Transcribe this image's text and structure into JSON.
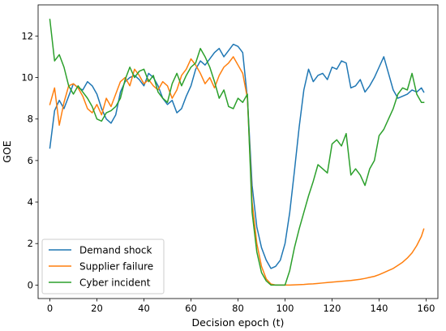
{
  "chart_data": {
    "type": "line",
    "title": "",
    "xlabel": "Decision epoch (t)",
    "ylabel": "GOE",
    "xlim": [
      -5,
      165
    ],
    "ylim": [
      -0.65,
      13.5
    ],
    "xticks": [
      0,
      20,
      40,
      60,
      80,
      100,
      120,
      140,
      160
    ],
    "yticks": [
      0,
      2,
      4,
      6,
      8,
      10,
      12
    ],
    "grid": false,
    "legend_position": "lower-left",
    "series": [
      {
        "name": "Demand shock",
        "color": "#1f77b4",
        "x": [
          0,
          2,
          4,
          6,
          8,
          10,
          12,
          14,
          16,
          18,
          20,
          22,
          24,
          26,
          28,
          30,
          32,
          34,
          36,
          38,
          40,
          42,
          44,
          46,
          48,
          50,
          52,
          54,
          56,
          58,
          60,
          62,
          64,
          66,
          68,
          70,
          72,
          74,
          76,
          78,
          80,
          82,
          84,
          86,
          88,
          90,
          92,
          94,
          96,
          98,
          100,
          102,
          104,
          106,
          108,
          110,
          112,
          114,
          116,
          118,
          120,
          122,
          124,
          126,
          128,
          130,
          132,
          134,
          136,
          138,
          140,
          142,
          144,
          146,
          148,
          150,
          152,
          154,
          156,
          158,
          159
        ],
        "y": [
          6.6,
          8.4,
          8.9,
          8.5,
          9.1,
          9.7,
          9.5,
          9.4,
          9.8,
          9.6,
          9.2,
          8.5,
          8.0,
          7.8,
          8.2,
          9.3,
          9.8,
          10.0,
          10.1,
          9.9,
          9.6,
          10.2,
          10.0,
          9.6,
          9.0,
          8.7,
          8.9,
          8.3,
          8.5,
          9.1,
          9.6,
          10.4,
          10.8,
          10.6,
          10.9,
          11.2,
          11.4,
          11.0,
          11.3,
          11.6,
          11.5,
          11.2,
          9.0,
          4.8,
          2.8,
          1.8,
          1.2,
          0.8,
          0.9,
          1.2,
          2.0,
          3.5,
          5.5,
          7.6,
          9.4,
          10.4,
          9.8,
          10.1,
          10.2,
          9.9,
          10.5,
          10.4,
          10.8,
          10.7,
          9.5,
          9.6,
          9.9,
          9.3,
          9.6,
          10.0,
          10.5,
          11.0,
          10.2,
          9.4,
          9.0,
          9.1,
          9.2,
          9.4,
          9.3,
          9.5,
          9.3
        ]
      },
      {
        "name": "Supplier failure",
        "color": "#ff7f0e",
        "x": [
          0,
          2,
          4,
          6,
          8,
          10,
          12,
          14,
          16,
          18,
          20,
          22,
          24,
          26,
          28,
          30,
          32,
          34,
          36,
          38,
          40,
          42,
          44,
          46,
          48,
          50,
          52,
          54,
          56,
          58,
          60,
          62,
          64,
          66,
          68,
          70,
          72,
          74,
          76,
          78,
          80,
          82,
          84,
          86,
          88,
          90,
          92,
          94,
          96,
          98,
          100,
          102,
          104,
          106,
          108,
          110,
          112,
          114,
          116,
          118,
          120,
          122,
          124,
          126,
          128,
          130,
          132,
          134,
          136,
          138,
          140,
          142,
          144,
          146,
          148,
          150,
          152,
          154,
          156,
          158,
          159
        ],
        "y": [
          8.7,
          9.5,
          7.7,
          8.8,
          9.6,
          9.7,
          9.5,
          9.1,
          8.5,
          8.3,
          8.7,
          8.2,
          9.0,
          8.6,
          9.2,
          9.8,
          10.0,
          9.6,
          10.4,
          10.1,
          9.7,
          9.9,
          9.6,
          9.4,
          9.8,
          9.6,
          9.0,
          9.4,
          10.1,
          10.4,
          10.9,
          10.6,
          10.2,
          9.7,
          10.0,
          9.5,
          10.1,
          10.5,
          10.7,
          11.0,
          10.6,
          10.2,
          9.0,
          4.0,
          2.0,
          0.9,
          0.3,
          0.05,
          0.0,
          0.0,
          0.0,
          0.0,
          0.01,
          0.02,
          0.03,
          0.05,
          0.06,
          0.08,
          0.1,
          0.12,
          0.14,
          0.16,
          0.18,
          0.2,
          0.22,
          0.25,
          0.28,
          0.32,
          0.37,
          0.42,
          0.5,
          0.6,
          0.7,
          0.8,
          0.95,
          1.1,
          1.3,
          1.55,
          1.9,
          2.35,
          2.7
        ]
      },
      {
        "name": "Cyber incident",
        "color": "#2ca02c",
        "x": [
          0,
          2,
          4,
          6,
          8,
          10,
          12,
          14,
          16,
          18,
          20,
          22,
          24,
          26,
          28,
          30,
          32,
          34,
          36,
          38,
          40,
          42,
          44,
          46,
          48,
          50,
          52,
          54,
          56,
          58,
          60,
          62,
          64,
          66,
          68,
          70,
          72,
          74,
          76,
          78,
          80,
          82,
          84,
          86,
          88,
          90,
          92,
          94,
          96,
          98,
          100,
          102,
          104,
          106,
          108,
          110,
          112,
          114,
          116,
          118,
          120,
          122,
          124,
          126,
          128,
          130,
          132,
          134,
          136,
          138,
          140,
          142,
          144,
          146,
          148,
          150,
          152,
          154,
          156,
          158,
          159
        ],
        "y": [
          12.8,
          10.8,
          11.1,
          10.5,
          9.6,
          9.2,
          9.6,
          9.3,
          9.0,
          8.6,
          8.0,
          7.9,
          8.3,
          8.4,
          8.6,
          9.0,
          9.9,
          10.5,
          10.0,
          10.3,
          10.4,
          9.8,
          10.1,
          9.3,
          9.0,
          8.8,
          9.7,
          10.2,
          9.6,
          10.1,
          10.5,
          10.7,
          11.4,
          11.0,
          10.5,
          9.8,
          9.0,
          9.4,
          8.6,
          8.5,
          9.0,
          8.8,
          9.2,
          3.5,
          1.6,
          0.6,
          0.2,
          0.0,
          0.0,
          0.0,
          0.0,
          0.7,
          1.8,
          2.7,
          3.5,
          4.3,
          5.0,
          5.8,
          5.6,
          5.4,
          6.8,
          7.0,
          6.7,
          7.3,
          5.3,
          5.6,
          5.3,
          4.8,
          5.6,
          6.0,
          7.2,
          7.5,
          8.0,
          8.5,
          9.2,
          9.5,
          9.4,
          10.2,
          9.2,
          8.8,
          8.8
        ]
      }
    ]
  }
}
